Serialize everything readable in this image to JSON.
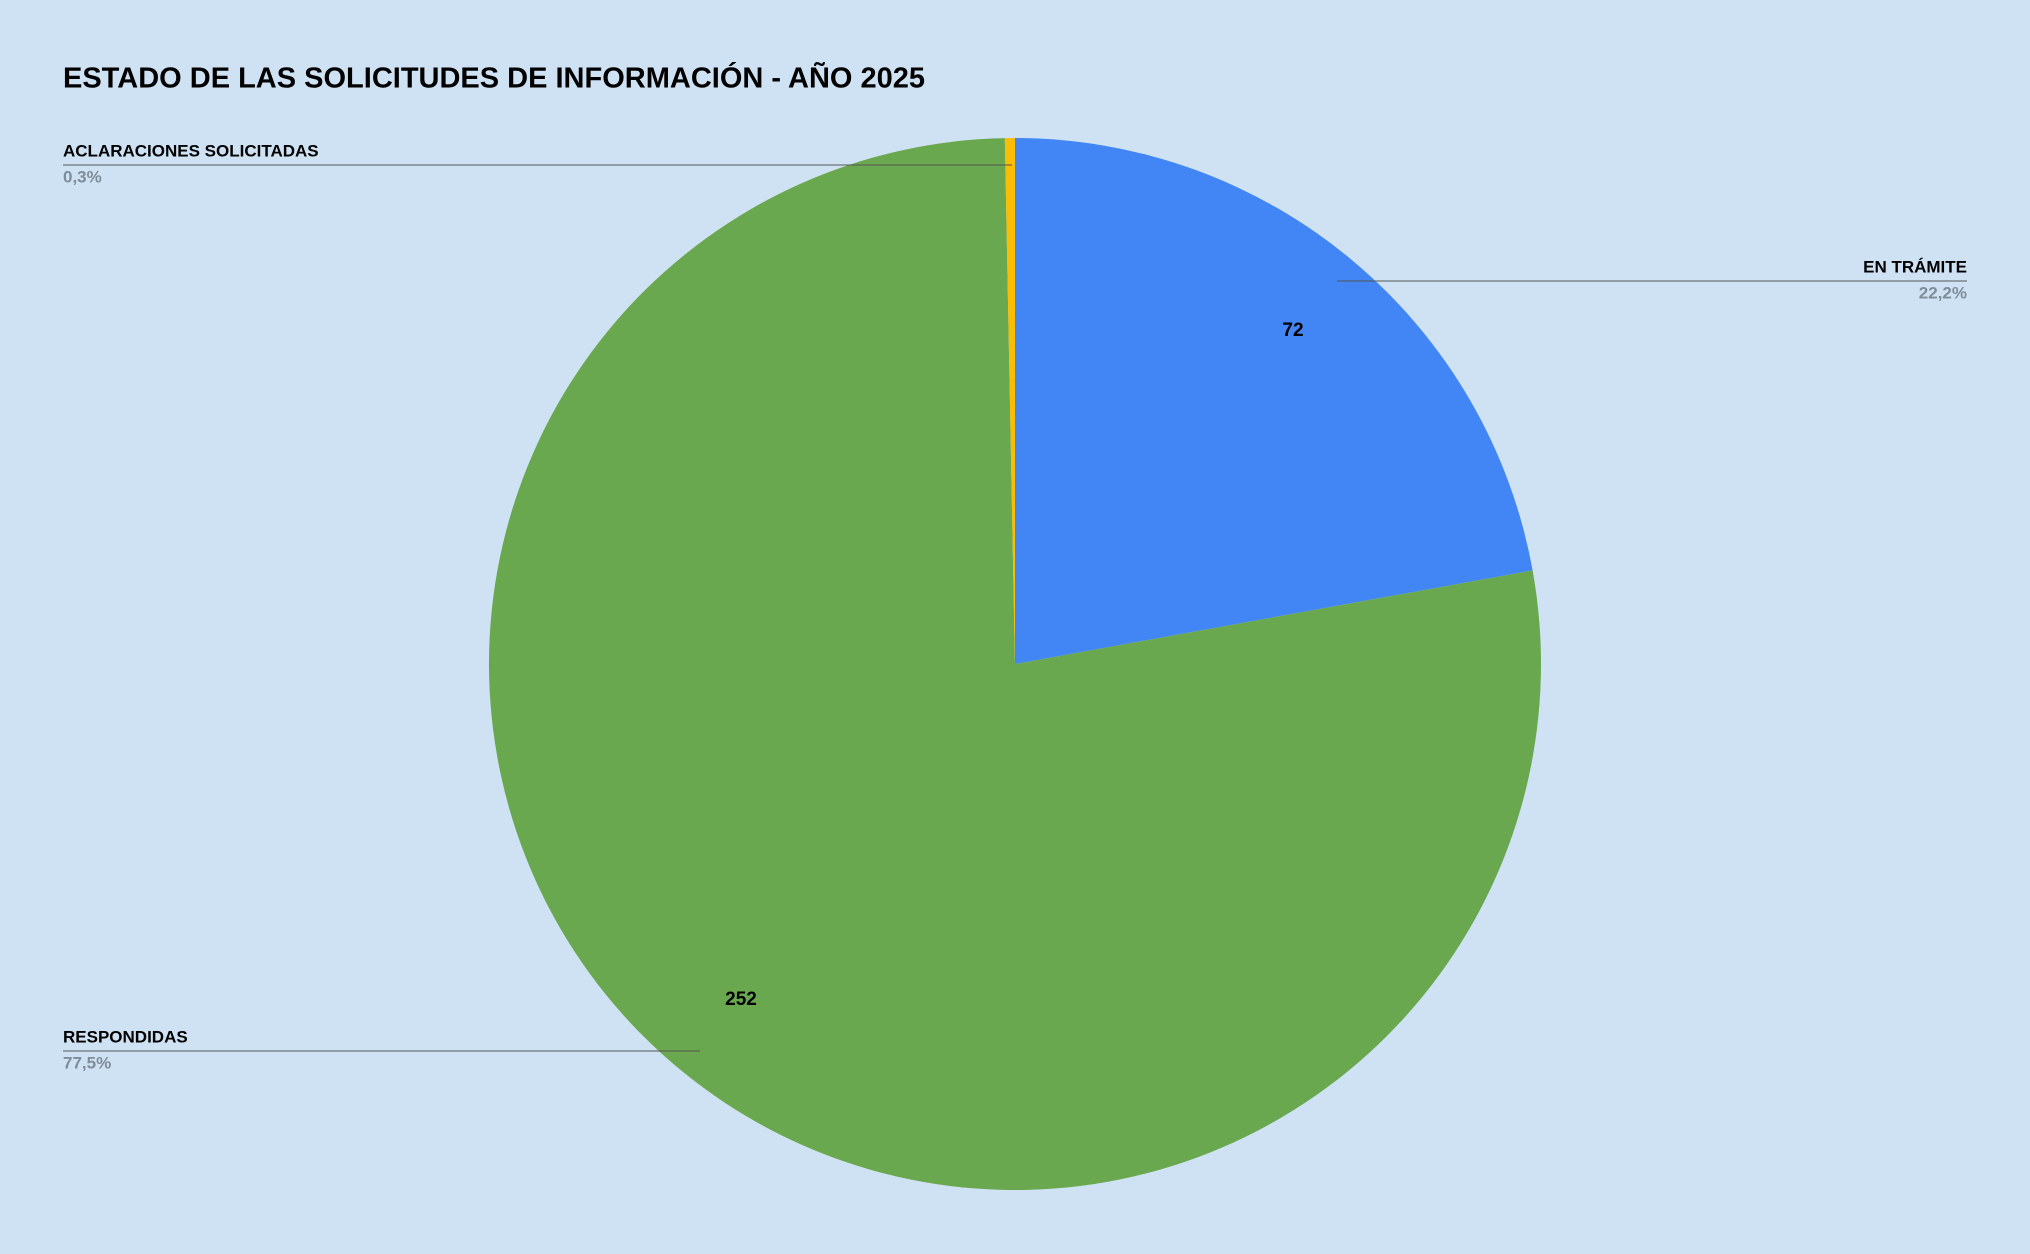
{
  "chart_data": {
    "type": "pie",
    "title": "ESTADO DE LAS SOLICITUDES DE INFORMACIÓN - AÑO 2025",
    "categories": [
      "EN TRÁMITE",
      "RESPONDIDAS",
      "ACLARACIONES SOLICITADAS"
    ],
    "values": [
      72,
      252,
      1
    ],
    "value_labels": [
      "72",
      "252",
      null
    ],
    "percentages": [
      {
        "value": 22.2,
        "label": "22,2%"
      },
      {
        "value": 77.5,
        "label": "77,5%"
      },
      {
        "value": 0.3,
        "label": "0,3%"
      }
    ],
    "colors": [
      "#4285f4",
      "#6aa84f",
      "#fbbc04"
    ],
    "start_angle": 0,
    "direction": "clockwise"
  }
}
